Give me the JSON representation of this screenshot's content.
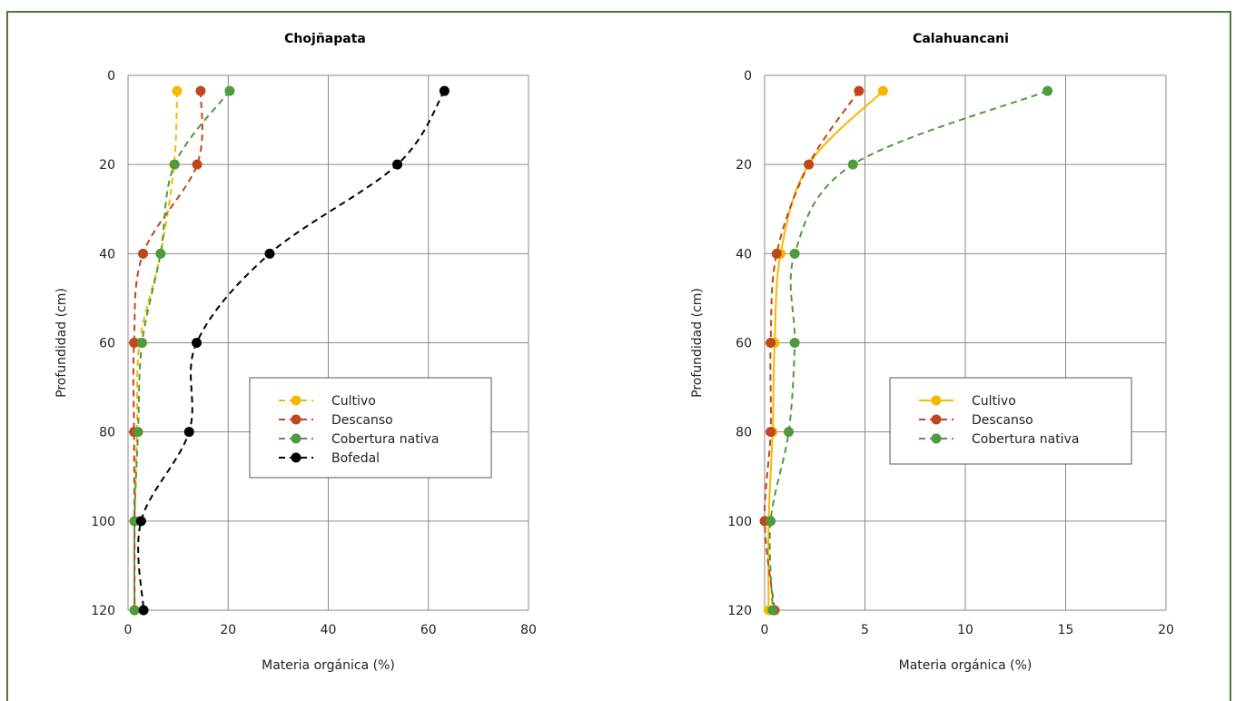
{
  "chart_data": [
    {
      "type": "line",
      "title": "Chojñapata",
      "xlabel": "Materia orgánica (%)",
      "ylabel": "Profundidad (cm)",
      "xlim": [
        0,
        80
      ],
      "ylim": [
        0,
        120
      ],
      "y_inverted": true,
      "x_ticks": [
        "0",
        "20",
        "40",
        "60",
        "80"
      ],
      "y_ticks": [
        "0",
        "20",
        "40",
        "60",
        "80",
        "100",
        "120"
      ],
      "grid": true,
      "legend_position": "right-center",
      "series": [
        {
          "name": "Cultivo",
          "color": "#f5b800",
          "dash": true,
          "points": [
            [
              9.8,
              3.5
            ],
            [
              9.2,
              20
            ],
            [
              6.5,
              40
            ],
            [
              2.3,
              60
            ],
            [
              1.8,
              80
            ],
            [
              1.3,
              100
            ],
            [
              1.3,
              120
            ]
          ]
        },
        {
          "name": "Descanso",
          "color": "#c0461c",
          "dash": true,
          "points": [
            [
              14.5,
              3.5
            ],
            [
              13.8,
              20
            ],
            [
              3.0,
              40
            ],
            [
              1.2,
              60
            ],
            [
              1.2,
              80
            ],
            [
              1.3,
              100
            ],
            [
              1.3,
              120
            ]
          ]
        },
        {
          "name": "Cobertura nativa",
          "color": "#4f9a3c",
          "dash": true,
          "points": [
            [
              20.3,
              3.5
            ],
            [
              9.3,
              20
            ],
            [
              6.5,
              40
            ],
            [
              2.8,
              60
            ],
            [
              2.0,
              80
            ],
            [
              1.3,
              100
            ],
            [
              1.3,
              120
            ]
          ]
        },
        {
          "name": "Bofedal",
          "color": "#000000",
          "dash": true,
          "points": [
            [
              63.2,
              3.5
            ],
            [
              53.8,
              20
            ],
            [
              28.3,
              40
            ],
            [
              13.7,
              60
            ],
            [
              12.2,
              80
            ],
            [
              2.6,
              100
            ],
            [
              3.1,
              120
            ]
          ]
        }
      ]
    },
    {
      "type": "line",
      "title": "Calahuancani",
      "xlabel": "Materia orgánica (%)",
      "ylabel": "Profundidad (cm)",
      "xlim": [
        0,
        20
      ],
      "ylim": [
        0,
        120
      ],
      "y_inverted": true,
      "x_ticks": [
        "0",
        "5",
        "10",
        "15",
        "20"
      ],
      "y_ticks": [
        "0",
        "20",
        "40",
        "60",
        "80",
        "100",
        "120"
      ],
      "grid": true,
      "legend_position": "right-center",
      "series": [
        {
          "name": "Cultivo",
          "color": "#f5b800",
          "dash": false,
          "points": [
            [
              5.9,
              3.5
            ],
            [
              2.2,
              20
            ],
            [
              0.8,
              40
            ],
            [
              0.5,
              60
            ],
            [
              0.4,
              80
            ],
            [
              0.2,
              100
            ],
            [
              0.2,
              120
            ]
          ]
        },
        {
          "name": "Descanso",
          "color": "#c0461c",
          "dash": true,
          "points": [
            [
              4.7,
              3.5
            ],
            [
              2.2,
              20
            ],
            [
              0.6,
              40
            ],
            [
              0.3,
              60
            ],
            [
              0.3,
              80
            ],
            [
              0.0,
              100
            ],
            [
              0.5,
              120
            ]
          ]
        },
        {
          "name": "Cobertura nativa",
          "color": "#4f9a3c",
          "dash": true,
          "points": [
            [
              14.1,
              3.5
            ],
            [
              4.4,
              20
            ],
            [
              1.5,
              40
            ],
            [
              1.5,
              60
            ],
            [
              1.2,
              80
            ],
            [
              0.3,
              100
            ],
            [
              0.4,
              120
            ]
          ]
        }
      ]
    }
  ]
}
